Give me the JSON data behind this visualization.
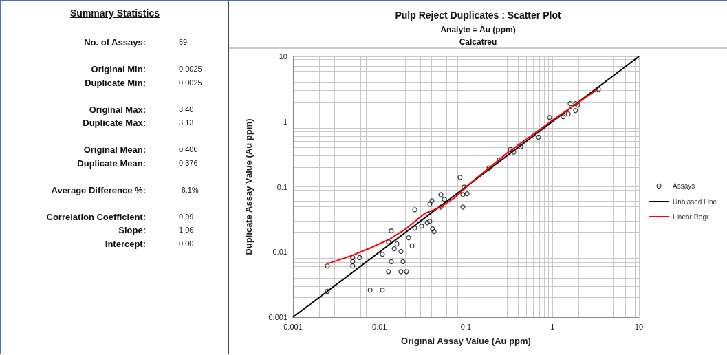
{
  "chart_data": [
    {
      "type": "other",
      "title": "Summary Statistics",
      "annotations": [
        "No. of Assays:",
        "59",
        "Original Min:",
        "0.0025",
        "Duplicate Min:",
        "0.0025",
        "Original Max:",
        "3.40",
        "Duplicate Max:",
        "3.13",
        "Original Mean:",
        "0.400",
        "Duplicate Mean:",
        "0.376",
        "Average Difference %:",
        "-6.1%",
        "Correlation Coefficient:",
        "0.99",
        "Slope:",
        "1.06",
        "Intercept:",
        "0.00"
      ]
    },
    {
      "type": "scatter",
      "title": "Pulp Reject Duplicates : Scatter Plot",
      "subtitle": "Analyte = Au (ppm)\nCalcatreu",
      "xlabel": "Original Assay Value (Au ppm)",
      "ylabel": "Duplicate Assay Value (Au ppm)",
      "log": "xy",
      "xlim": [
        0.001,
        10
      ],
      "ylim": [
        0.001,
        10
      ],
      "xticks": [
        0.001,
        0.01,
        0.1,
        1,
        10
      ],
      "yticks": [
        0.001,
        0.01,
        0.1,
        1,
        10
      ],
      "grid": true,
      "legend": "right",
      "series": [
        {
          "name": "Assays",
          "type": "scatter",
          "marker": "circle",
          "color": "#000000",
          "x": [
            0.0025,
            0.0025,
            0.0049,
            0.0049,
            0.0049,
            0.0059,
            0.0078,
            0.0108,
            0.0108,
            0.0127,
            0.0127,
            0.0137,
            0.0137,
            0.0148,
            0.0159,
            0.0177,
            0.0177,
            0.0187,
            0.0205,
            0.0217,
            0.0238,
            0.0256,
            0.0256,
            0.0307,
            0.0356,
            0.0382,
            0.0382,
            0.0404,
            0.041,
            0.0427,
            0.0513,
            0.0562,
            0.0513,
            0.0855,
            0.092,
            0.103,
            0.092,
            0.095,
            0.185,
            0.243,
            0.326,
            0.357,
            0.43,
            0.69,
            0.925,
            1.33,
            1.52,
            1.6,
            1.85,
            1.85,
            1.96,
            3.4
          ],
          "values": [
            0.0061,
            0.0025,
            0.0082,
            0.0071,
            0.0061,
            0.0082,
            0.0026,
            0.0026,
            0.0092,
            0.0143,
            0.005,
            0.021,
            0.0071,
            0.0112,
            0.0133,
            0.0102,
            0.005,
            0.0071,
            0.005,
            0.0165,
            0.0124,
            0.0445,
            0.0232,
            0.0249,
            0.0281,
            0.0294,
            0.054,
            0.061,
            0.0226,
            0.0205,
            0.0757,
            0.064,
            0.049,
            0.139,
            0.0757,
            0.078,
            0.049,
            0.099,
            0.195,
            0.26,
            0.373,
            0.34,
            0.41,
            0.577,
            1.16,
            1.19,
            1.31,
            1.89,
            1.89,
            1.48,
            1.8,
            3.13
          ]
        },
        {
          "name": "Unbiased Line",
          "type": "line",
          "marker": "none",
          "color": "#000000",
          "x": [
            0.001,
            10
          ],
          "values": [
            0.001,
            10
          ]
        },
        {
          "name": "Linear Regr.",
          "type": "line",
          "marker": "none",
          "color": "#ff0000",
          "x": [
            0.0025,
            0.0049,
            0.0078,
            0.0132,
            0.0198,
            0.033,
            0.051,
            0.073,
            0.118,
            0.3,
            1,
            3.4
          ],
          "values": [
            0.0066,
            0.0089,
            0.0115,
            0.0158,
            0.0222,
            0.0385,
            0.049,
            0.067,
            0.12,
            0.33,
            1.05,
            3.2
          ]
        }
      ]
    }
  ]
}
